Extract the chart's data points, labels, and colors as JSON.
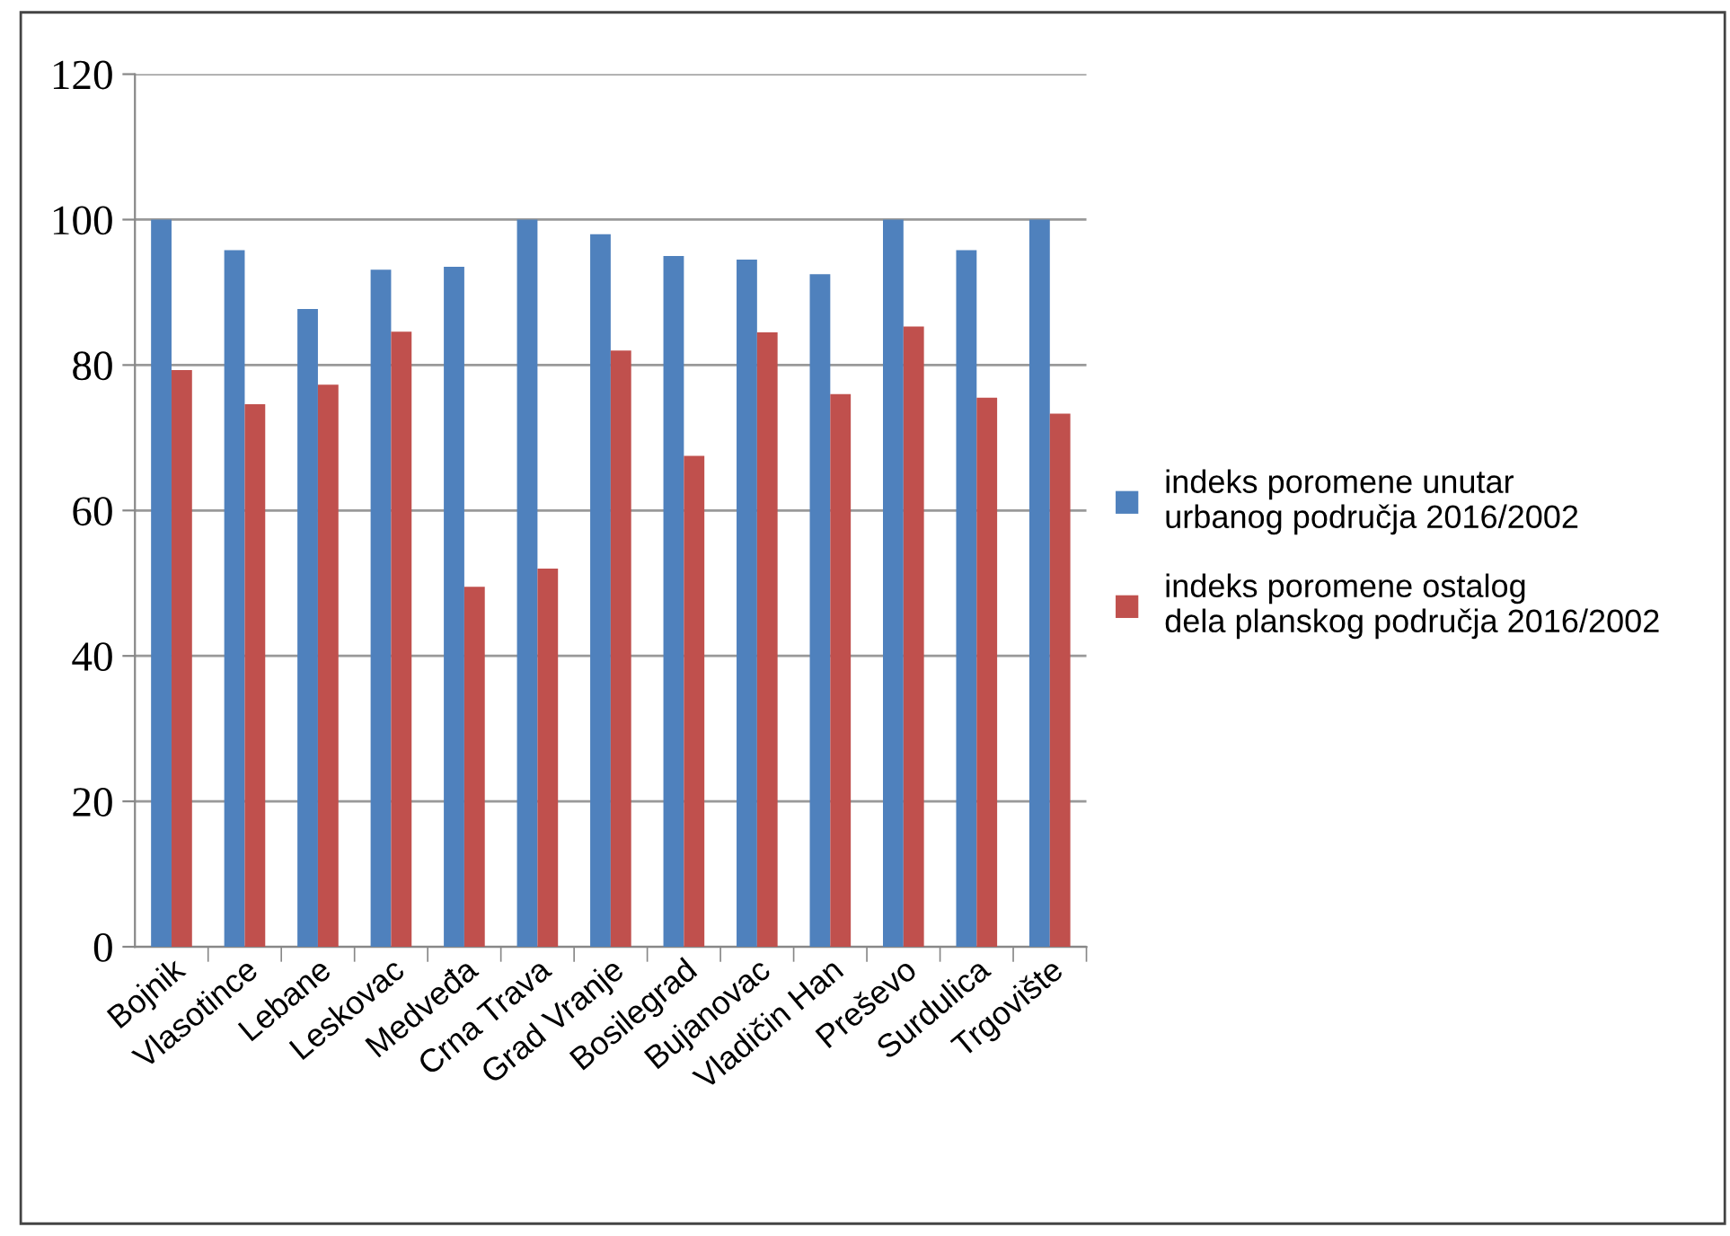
{
  "chart_data": {
    "type": "bar",
    "categories": [
      "Bojnik",
      "Vlasotince",
      "Lebane",
      "Leskovac",
      "Medveđa",
      "Crna Trava",
      "Grad Vranje",
      "Bosilegrad",
      "Bujanovac",
      "Vladičin Han",
      "Preševo",
      "Surdulica",
      "Trgovište"
    ],
    "series": [
      {
        "name": "indeks poromene unutar\nurbanog područja 2016/2002",
        "color": "#4f81bd",
        "values": [
          100,
          95.8,
          87.7,
          93.1,
          93.5,
          100,
          98,
          95,
          94.5,
          92.5,
          100,
          95.8,
          100
        ]
      },
      {
        "name": "indeks poromene ostalog\ndela planskog područja 2016/2002",
        "color": "#c0504d",
        "values": [
          79.3,
          74.6,
          77.3,
          84.6,
          49.5,
          52,
          82,
          67.5,
          84.5,
          76,
          85.3,
          75.5,
          73.3
        ]
      }
    ],
    "ylim": [
      0,
      120
    ],
    "yticks": [
      0,
      20,
      40,
      60,
      80,
      100,
      120
    ],
    "grid": "y",
    "legend": "right"
  }
}
